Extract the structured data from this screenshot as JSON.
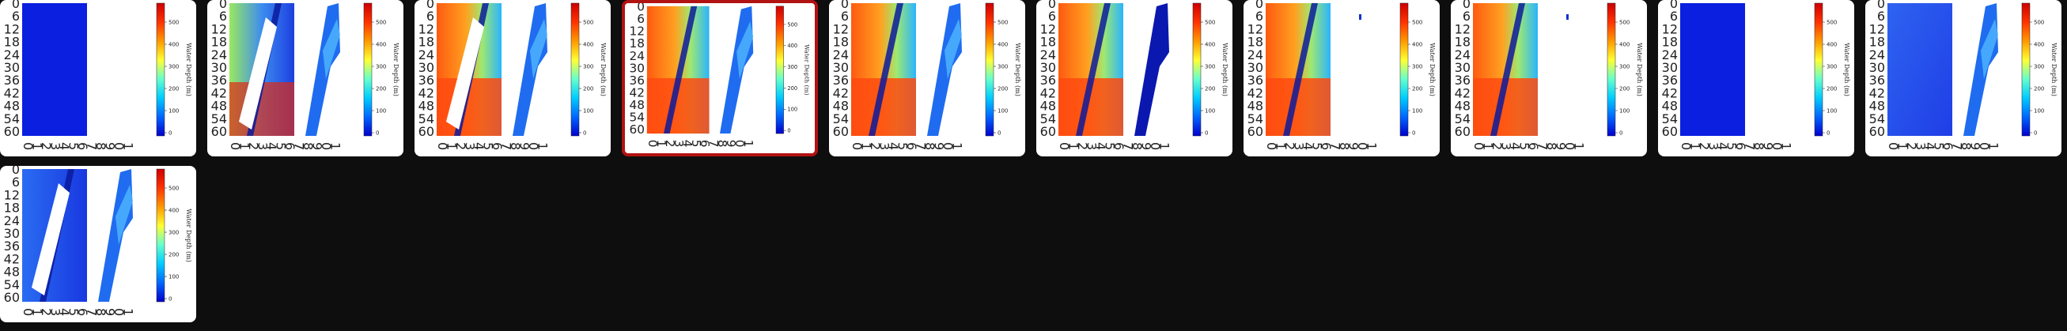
{
  "gallery": {
    "selected_index": 3,
    "y_ticks": [
      "0",
      "6",
      "12",
      "18",
      "24",
      "30",
      "36",
      "42",
      "48",
      "54",
      "60"
    ],
    "x_ticks": [
      "0",
      "1",
      "2",
      "3",
      "4",
      "5",
      "6",
      "7",
      "8",
      "9",
      "0",
      "1"
    ],
    "colorbar": {
      "label": "Water Depth (m)",
      "ticks": [
        "500",
        "400",
        "300",
        "200",
        "100",
        "0"
      ],
      "colors": [
        "#cc0000",
        "#ff3300",
        "#ff9900",
        "#ffff33",
        "#66ffcc",
        "#00ccff",
        "#0066ff",
        "#0000cc"
      ]
    },
    "thumbnails": [
      {
        "name": "thumb-1",
        "left_style": "solid-blue",
        "right_style": "none"
      },
      {
        "name": "thumb-2",
        "left_style": "mixed-white-gap",
        "right_style": "blue-band"
      },
      {
        "name": "thumb-3",
        "left_style": "orange-white-gap",
        "right_style": "blue-band"
      },
      {
        "name": "thumb-4",
        "left_style": "orange-diagonal",
        "right_style": "blue-band"
      },
      {
        "name": "thumb-5",
        "left_style": "orange-diagonal",
        "right_style": "blue-band"
      },
      {
        "name": "thumb-6",
        "left_style": "orange-diagonal",
        "right_style": "dark-band"
      },
      {
        "name": "thumb-7",
        "left_style": "orange-diagonal",
        "right_style": "dot"
      },
      {
        "name": "thumb-8",
        "left_style": "orange-diagonal",
        "right_style": "dot"
      },
      {
        "name": "thumb-9",
        "left_style": "solid-blue",
        "right_style": "none"
      },
      {
        "name": "thumb-10",
        "left_style": "light-blue",
        "right_style": "blue-band"
      },
      {
        "name": "thumb-11",
        "left_style": "blue-white-gap",
        "right_style": "blue-band"
      }
    ]
  }
}
